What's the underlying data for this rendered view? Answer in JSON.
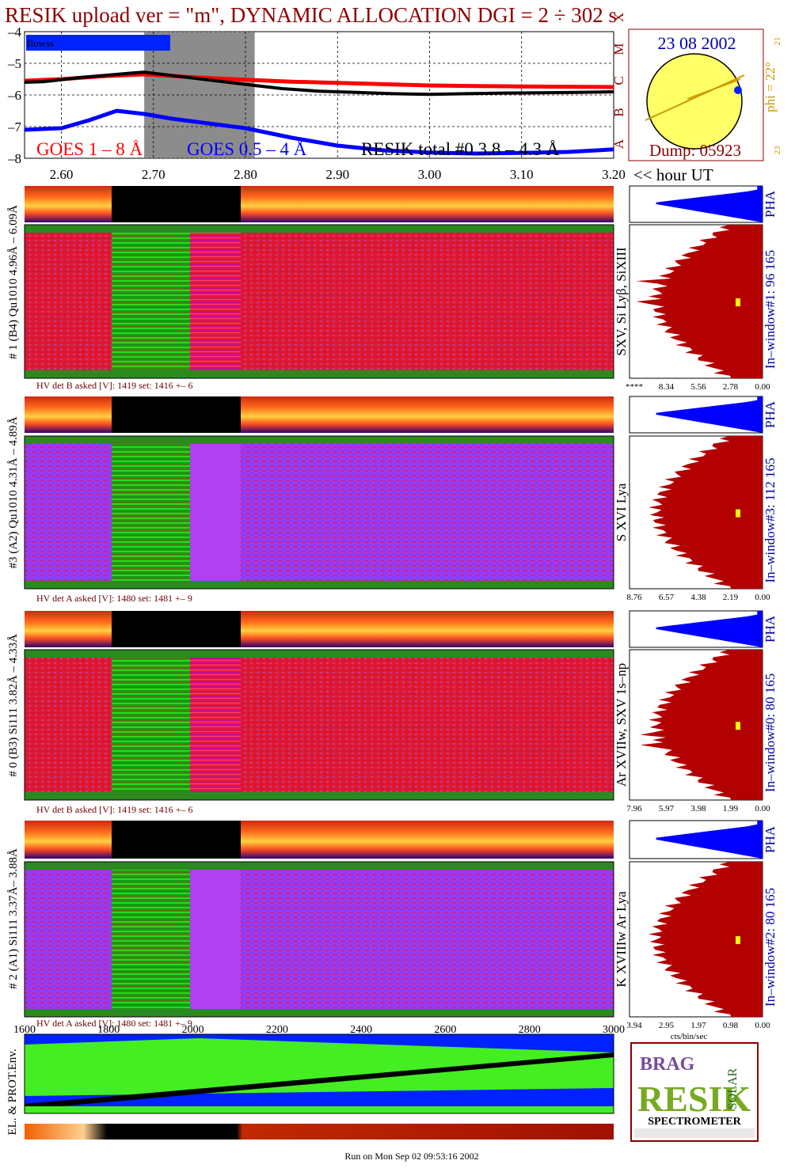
{
  "header": {
    "title": "RESIK upload ver = \"m\", DYNAMIC ALLOCATION  DGI =   2 ÷ 302 s"
  },
  "colors": {
    "goes_long": "#ff0000",
    "goes_short": "#0000ff",
    "resik_total": "#000000",
    "title": "#8b0000",
    "pha": "#0000ff",
    "histogram_fill": "#b30000",
    "sun": "#ffff66",
    "label_blue": "#0000aa",
    "label_orange": "#cc9900"
  },
  "chart_data": [
    {
      "type": "line",
      "name": "goes-lightcurve",
      "legend": [
        "GOES 1 – 8 Å",
        "GOES 0.5 – 4 Å",
        "RESIK total #0  3.8 – 4.3 Å"
      ],
      "inset_label": "flowss",
      "y_ticks": [
        "–4",
        "–5",
        "–6",
        "–7",
        "–8"
      ],
      "ylim": [
        -8,
        -4
      ],
      "x_ticks": [
        "2.60",
        "2.70",
        "2.80",
        "2.90",
        "3.00",
        "3.10",
        "3.20"
      ],
      "xlim": [
        2.56,
        3.2
      ],
      "x_unit_label": "<< hour UT",
      "class_letters": [
        "A",
        "B",
        "C",
        "M",
        "X"
      ],
      "gap": {
        "x": [
          2.69,
          2.81
        ]
      },
      "series": [
        {
          "name": "GOES 1 – 8 Å",
          "x": [
            2.56,
            2.6,
            2.65,
            2.69,
            2.75,
            2.8,
            2.85,
            2.9,
            2.95,
            3.0,
            3.05,
            3.1,
            3.15,
            3.2
          ],
          "values": [
            -5.55,
            -5.5,
            -5.4,
            -5.35,
            -5.45,
            -5.52,
            -5.58,
            -5.62,
            -5.66,
            -5.7,
            -5.72,
            -5.73,
            -5.74,
            -5.75
          ]
        },
        {
          "name": "GOES 0.5 – 4 Å",
          "x": [
            2.56,
            2.6,
            2.63,
            2.66,
            2.69,
            2.72,
            2.76,
            2.8,
            2.85,
            2.9,
            2.95,
            3.0,
            3.05,
            3.1,
            3.15,
            3.2
          ],
          "values": [
            -7.1,
            -7.05,
            -6.8,
            -6.5,
            -6.6,
            -6.75,
            -6.9,
            -7.05,
            -7.35,
            -7.6,
            -7.75,
            -7.82,
            -7.85,
            -7.83,
            -7.8,
            -7.72
          ]
        },
        {
          "name": "RESIK total #0  3.8 – 4.3 Å",
          "x": [
            2.56,
            2.58,
            2.6,
            2.62,
            2.64,
            2.66,
            2.68,
            2.69,
            2.81,
            2.84,
            2.88,
            2.92,
            2.96,
            3.0,
            3.04,
            3.08,
            3.12,
            3.16,
            3.2
          ],
          "values": [
            -5.6,
            -5.58,
            -5.52,
            -5.45,
            -5.4,
            -5.35,
            -5.3,
            -5.28,
            -5.7,
            -5.8,
            -5.88,
            -5.92,
            -5.96,
            -5.98,
            -5.96,
            -5.94,
            -5.93,
            -5.92,
            -5.9
          ]
        }
      ]
    },
    {
      "type": "bar",
      "name": "pha-and-in-window-histograms",
      "panels": [
        {
          "pha_label": "PHA",
          "window_label": "In–window#1:  96 165",
          "xticks": [
            "****",
            "8.34",
            "5.56",
            "2.78",
            "0.00"
          ]
        },
        {
          "pha_label": "PHA",
          "window_label": "In–window#3:  112 165",
          "xticks": [
            "8.76",
            "6.57",
            "4.38",
            "2.19",
            "0.00"
          ]
        },
        {
          "pha_label": "PHA",
          "window_label": "In–window#0:  80 165",
          "xticks": [
            "7.96",
            "5.97",
            "3.98",
            "1.99",
            "0.00"
          ]
        },
        {
          "pha_label": "PHA",
          "window_label": "In–window#2:  80 165",
          "xticks": [
            "3.94",
            "2.95",
            "1.97",
            "0.98",
            "0.00"
          ]
        }
      ],
      "unit_label": "cts/bin/sec"
    },
    {
      "type": "heatmap",
      "name": "environment-panel",
      "ylabel": "EL. & PROT.Env.",
      "x_ticks": [
        "1600",
        "1800",
        "2000",
        "2200",
        "2400",
        "2600",
        "2800",
        "3000"
      ],
      "xlim": [
        1600,
        3000
      ]
    }
  ],
  "sun_panel": {
    "date": "23 08 2002",
    "phi": "phi = 22°",
    "dump": "Dump: 05923",
    "left_tick": "21",
    "right_tick": "23"
  },
  "channels": [
    {
      "left_label": "# 1 (B4) Qu1010 4.96Å – 6.09Å",
      "right_label": "SXV, Si Lyβ, SiXIII",
      "hv": "HV det B asked [V]:  1419 set:  1416 +–     6"
    },
    {
      "left_label": "#3 (A2) Qu1010  4.31Å – 4.89Å",
      "right_label": "S XVI Lya",
      "hv": "HV det A asked [V]:  1480 set:  1481 +–     9"
    },
    {
      "left_label": "# 0 (B3) Si111  3.82Å – 4.33Å",
      "right_label": "Ar XVIIw,  SXV 1s–np",
      "hv": "HV det B asked [V]:  1419 set:  1416 +–     6"
    },
    {
      "left_label": "# 2 (A1) Si111  3.37Å– 3.88Å",
      "right_label": "K XVIIIw  Ar Lya",
      "hv": "HV det A asked [V]:  1480 set:  1481 +–     9"
    }
  ],
  "logo": {
    "line1": "BRAG",
    "line2": "RESIK",
    "line3": "SOLAR",
    "bottom": "SPECTROMETER"
  },
  "footer": {
    "run_info": "Run on Mon Sep 02 09:53:16 2002"
  }
}
